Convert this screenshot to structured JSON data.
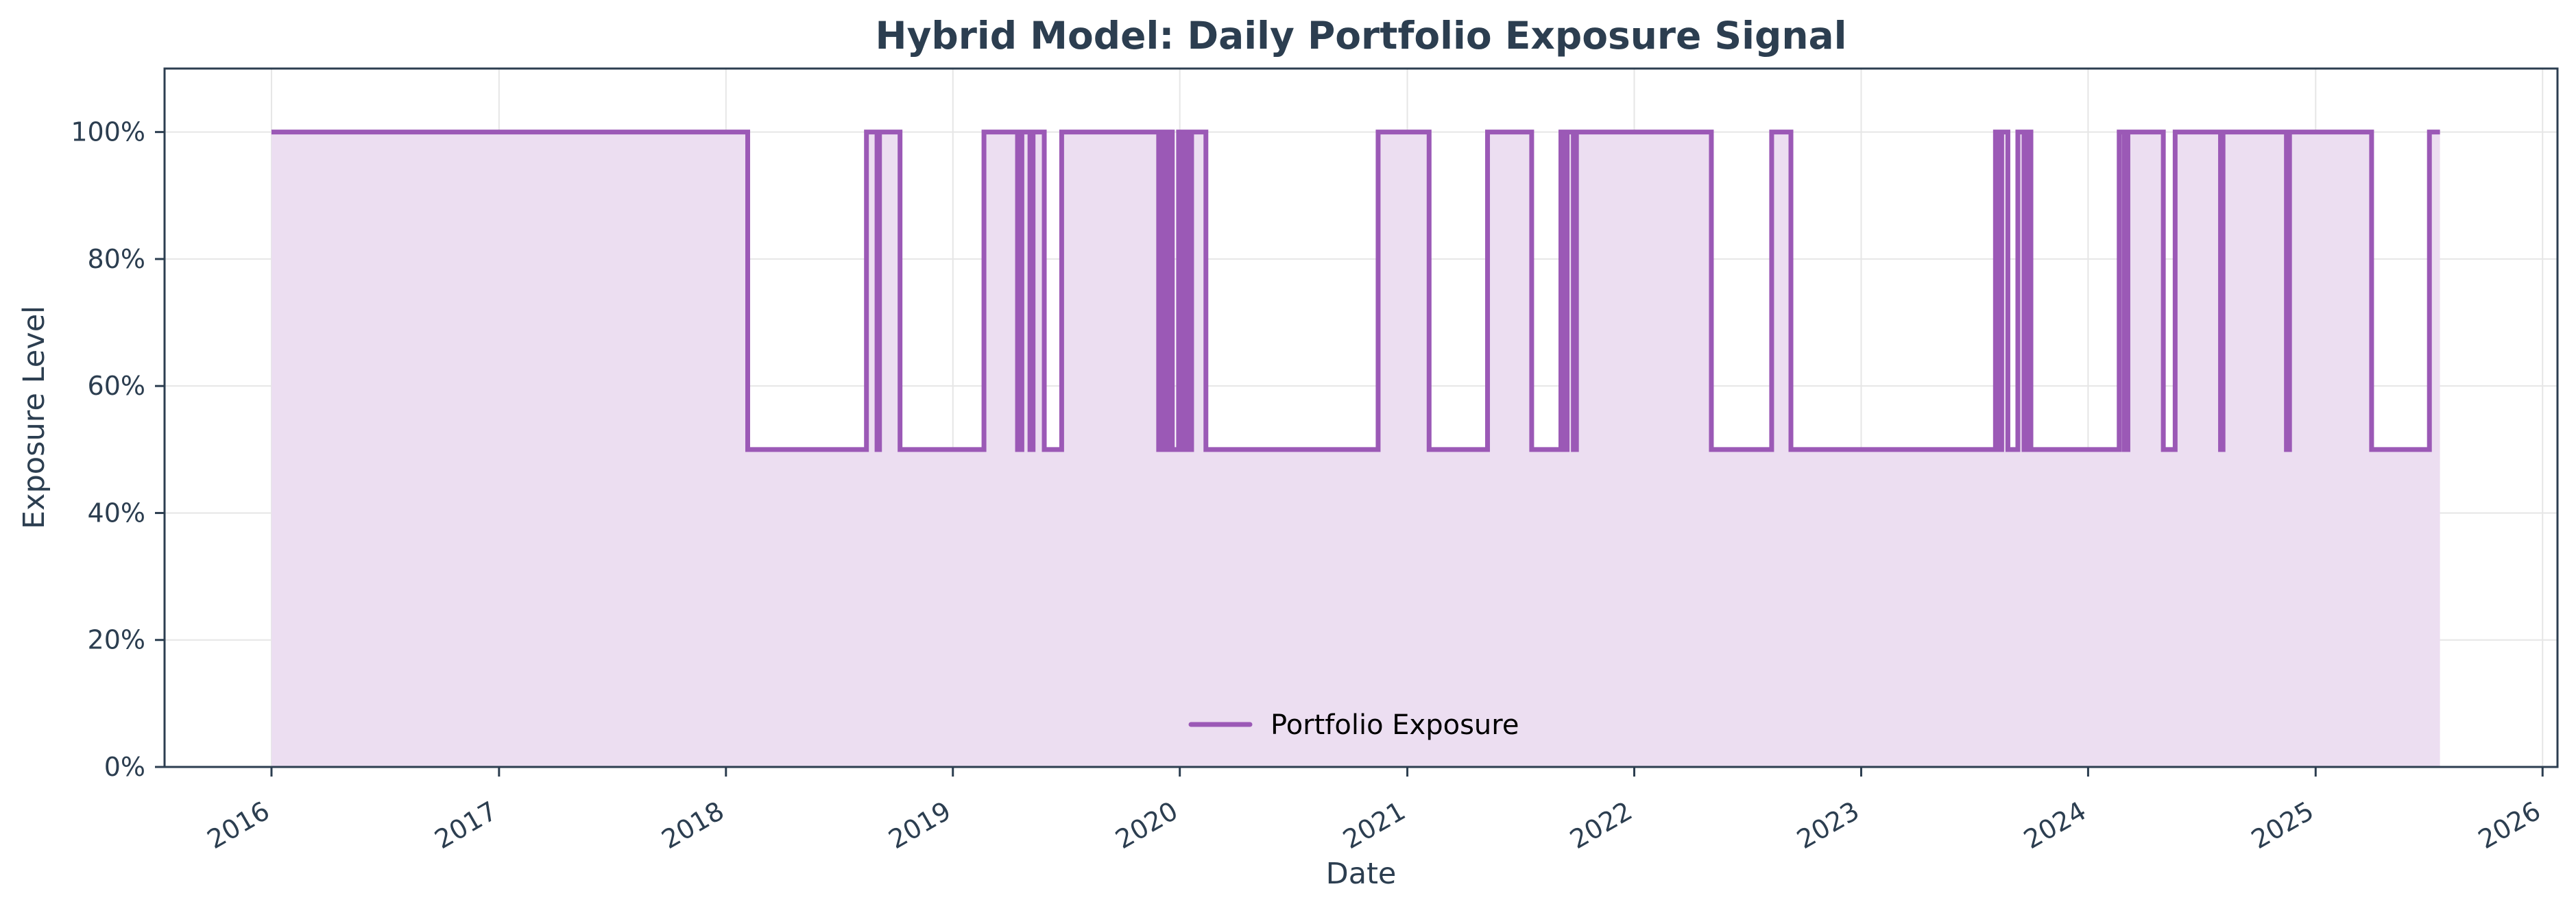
{
  "colors": {
    "line": "#9b59b6",
    "fill": "#ecdef1",
    "axis": "#2c3e50",
    "grid": "#e6e6e6",
    "background": "#ffffff"
  },
  "chart_data": {
    "type": "area",
    "title": "Hybrid Model: Daily Portfolio Exposure Signal",
    "xlabel": "Date",
    "ylabel": "Exposure Level",
    "x_range": [
      "2015-07-13",
      "2026-01-25"
    ],
    "ylim": [
      0,
      1.1
    ],
    "x_ticks": [
      "2016",
      "2017",
      "2018",
      "2019",
      "2020",
      "2021",
      "2022",
      "2023",
      "2024",
      "2025",
      "2026"
    ],
    "y_ticks": [
      "0%",
      "20%",
      "40%",
      "60%",
      "80%",
      "100%"
    ],
    "grid": true,
    "legend_position": "bottom-center",
    "series": [
      {
        "name": "Portfolio Exposure",
        "step": "post",
        "points": [
          [
            "2016-01-01",
            1.0
          ],
          [
            "2018-02-05",
            0.5
          ],
          [
            "2018-08-15",
            1.0
          ],
          [
            "2018-09-01",
            0.5
          ],
          [
            "2018-09-05",
            1.0
          ],
          [
            "2018-10-08",
            0.5
          ],
          [
            "2019-02-20",
            1.0
          ],
          [
            "2019-04-15",
            0.5
          ],
          [
            "2019-04-22",
            1.0
          ],
          [
            "2019-05-05",
            0.5
          ],
          [
            "2019-05-10",
            1.0
          ],
          [
            "2019-05-28",
            0.5
          ],
          [
            "2019-06-25",
            1.0
          ],
          [
            "2019-11-28",
            0.5
          ],
          [
            "2019-12-05",
            1.0
          ],
          [
            "2019-12-10",
            0.5
          ],
          [
            "2019-12-14",
            1.0
          ],
          [
            "2019-12-20",
            0.5
          ],
          [
            "2019-12-30",
            1.0
          ],
          [
            "2020-01-05",
            0.5
          ],
          [
            "2020-01-10",
            1.0
          ],
          [
            "2020-01-16",
            0.5
          ],
          [
            "2020-01-20",
            1.0
          ],
          [
            "2020-02-12",
            0.5
          ],
          [
            "2020-11-15",
            1.0
          ],
          [
            "2021-02-05",
            0.5
          ],
          [
            "2021-05-10",
            1.0
          ],
          [
            "2021-07-20",
            0.5
          ],
          [
            "2021-09-05",
            1.0
          ],
          [
            "2021-09-12",
            0.5
          ],
          [
            "2021-09-15",
            1.0
          ],
          [
            "2021-09-25",
            0.5
          ],
          [
            "2021-09-30",
            1.0
          ],
          [
            "2022-05-05",
            0.5
          ],
          [
            "2022-08-10",
            1.0
          ],
          [
            "2022-09-10",
            0.5
          ],
          [
            "2023-08-05",
            1.0
          ],
          [
            "2023-08-10",
            0.5
          ],
          [
            "2023-08-15",
            1.0
          ],
          [
            "2023-08-25",
            0.5
          ],
          [
            "2023-09-10",
            1.0
          ],
          [
            "2023-09-20",
            0.5
          ],
          [
            "2023-09-25",
            1.0
          ],
          [
            "2023-10-01",
            0.5
          ],
          [
            "2024-02-20",
            1.0
          ],
          [
            "2024-02-28",
            0.5
          ],
          [
            "2024-03-05",
            1.0
          ],
          [
            "2024-05-01",
            0.5
          ],
          [
            "2024-05-20",
            1.0
          ],
          [
            "2024-08-01",
            0.5
          ],
          [
            "2024-08-05",
            1.0
          ],
          [
            "2024-11-15",
            0.5
          ],
          [
            "2024-11-20",
            1.0
          ],
          [
            "2025-04-01",
            0.5
          ],
          [
            "2025-07-03",
            1.0
          ],
          [
            "2025-07-20",
            1.0
          ]
        ]
      }
    ]
  }
}
